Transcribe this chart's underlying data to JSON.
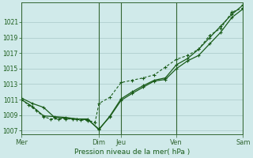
{
  "xlabel": "Pression niveau de la mer( hPa )",
  "bg_color": "#d0eaea",
  "grid_color": "#a8c8c8",
  "line_color": "#1a5c1a",
  "vline_color": "#336633",
  "ylim": [
    1006.5,
    1023.5
  ],
  "yticks": [
    1007,
    1009,
    1011,
    1013,
    1015,
    1017,
    1019,
    1021
  ],
  "day_labels": [
    "Mer",
    "Dim",
    "Jeu",
    "Ven",
    "Sam"
  ],
  "day_positions": [
    0,
    3.5,
    4.5,
    7.0,
    10.0
  ],
  "vline_positions": [
    0,
    3.5,
    4.5,
    7.0,
    10.0
  ],
  "xlim": [
    0,
    10.0
  ],
  "series1_x": [
    0,
    0.33,
    0.67,
    1.0,
    1.33,
    1.67,
    2.0,
    2.33,
    2.67,
    3.0,
    3.33,
    3.5,
    4.0,
    4.5,
    5.0,
    5.5,
    6.0,
    6.5,
    7.0,
    7.5,
    8.0,
    8.5,
    9.0,
    9.5,
    10.0
  ],
  "series1_y": [
    1011.0,
    1010.3,
    1009.6,
    1008.8,
    1008.5,
    1008.5,
    1008.5,
    1008.5,
    1008.4,
    1008.3,
    1008.1,
    1010.5,
    1011.3,
    1013.2,
    1013.5,
    1013.8,
    1014.2,
    1015.2,
    1016.2,
    1016.7,
    1017.5,
    1019.3,
    1020.2,
    1022.3,
    1022.8
  ],
  "series2_x": [
    0,
    0.5,
    1.0,
    1.5,
    2.0,
    2.5,
    3.0,
    3.5,
    4.0,
    4.5,
    5.0,
    5.5,
    6.0,
    6.5,
    7.0,
    7.5,
    8.0,
    8.5,
    9.0,
    9.5,
    10.0
  ],
  "series2_y": [
    1011.2,
    1010.5,
    1010.0,
    1008.7,
    1008.6,
    1008.5,
    1008.4,
    1007.2,
    1008.8,
    1010.9,
    1011.8,
    1012.6,
    1013.4,
    1013.6,
    1015.0,
    1016.0,
    1016.7,
    1018.2,
    1019.7,
    1021.6,
    1022.7
  ],
  "series3_x": [
    0,
    0.5,
    1.0,
    1.5,
    2.0,
    2.5,
    3.0,
    3.5,
    4.0,
    4.5,
    5.0,
    5.5,
    6.0,
    6.5,
    7.0,
    7.5,
    8.0,
    8.5,
    9.0,
    9.5,
    10.0
  ],
  "series3_y": [
    1011.0,
    1010.1,
    1008.9,
    1008.8,
    1008.7,
    1008.5,
    1008.5,
    1007.1,
    1008.9,
    1011.1,
    1012.0,
    1012.8,
    1013.5,
    1013.8,
    1015.5,
    1016.3,
    1017.5,
    1019.0,
    1020.5,
    1022.0,
    1023.2
  ]
}
